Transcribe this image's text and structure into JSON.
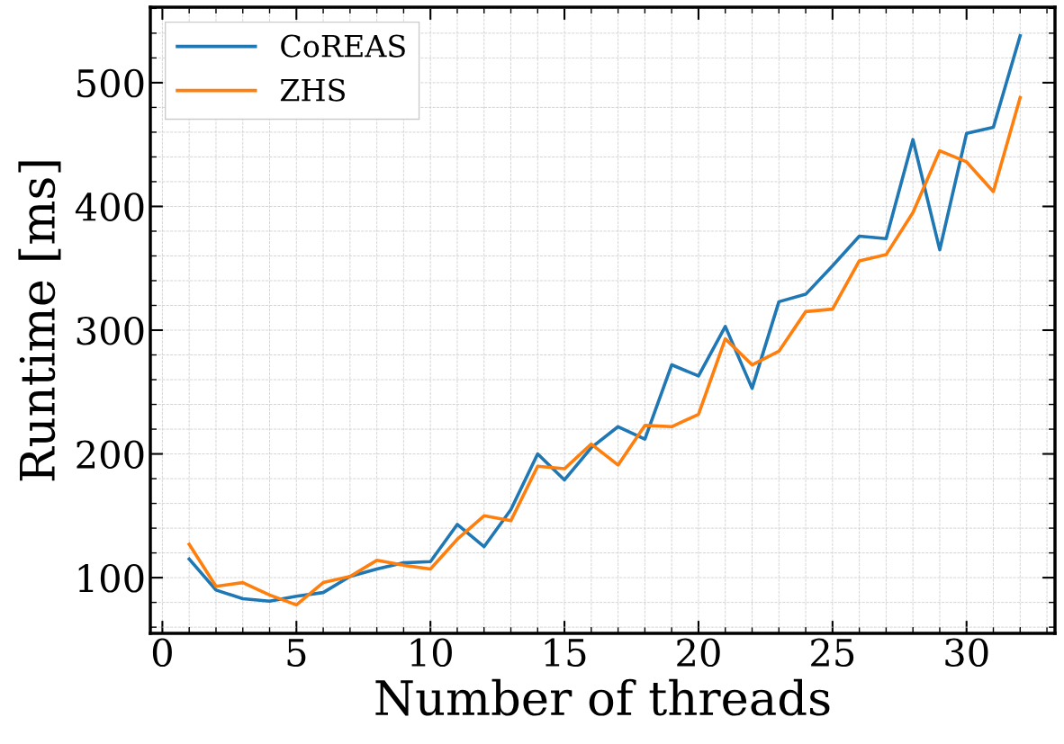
{
  "chart_data": {
    "type": "line",
    "xlabel": "Number of threads",
    "ylabel": "Runtime [ms]",
    "x": [
      1,
      2,
      3,
      4,
      5,
      6,
      7,
      8,
      9,
      10,
      11,
      12,
      13,
      14,
      15,
      16,
      17,
      18,
      19,
      20,
      21,
      22,
      23,
      24,
      25,
      26,
      27,
      28,
      29,
      30,
      31,
      32
    ],
    "series": [
      {
        "name": "CoREAS",
        "color": "#1f77b4",
        "values": [
          115,
          90,
          83,
          81,
          85,
          88,
          101,
          107,
          112,
          113,
          143,
          125,
          155,
          200,
          179,
          205,
          222,
          212,
          272,
          263,
          303,
          253,
          323,
          329,
          352,
          376,
          374,
          454,
          365,
          459,
          464,
          538
        ]
      },
      {
        "name": "ZHS",
        "color": "#ff7f0e",
        "values": [
          127,
          93,
          96,
          86,
          78,
          96,
          101,
          114,
          110,
          107,
          131,
          150,
          146,
          190,
          188,
          208,
          191,
          223,
          222,
          232,
          293,
          272,
          283,
          315,
          317,
          356,
          361,
          395,
          445,
          436,
          412,
          488
        ]
      }
    ],
    "xlim": [
      -0.45,
      33.3
    ],
    "ylim": [
      55,
      561
    ],
    "xticks": [
      0,
      {
        "value": 1,
        "label": null
      },
      {
        "value": 2,
        "label": null
      },
      {
        "value": 3,
        "label": null
      },
      {
        "value": 4,
        "label": null
      },
      5,
      {
        "value": 6,
        "label": null
      },
      {
        "value": 7,
        "label": null
      },
      {
        "value": 8,
        "label": null
      },
      {
        "value": 9,
        "label": null
      },
      10,
      {
        "value": 11,
        "label": null
      },
      {
        "value": 12,
        "label": null
      },
      {
        "value": 13,
        "label": null
      },
      {
        "value": 14,
        "label": null
      },
      15,
      {
        "value": 16,
        "label": null
      },
      {
        "value": 17,
        "label": null
      },
      {
        "value": 18,
        "label": null
      },
      {
        "value": 19,
        "label": null
      },
      20,
      {
        "value": 21,
        "label": null
      },
      {
        "value": 22,
        "label": null
      },
      {
        "value": 23,
        "label": null
      },
      {
        "value": 24,
        "label": null
      },
      25,
      {
        "value": 26,
        "label": null
      },
      {
        "value": 27,
        "label": null
      },
      {
        "value": 28,
        "label": null
      },
      {
        "value": 29,
        "label": null
      },
      30,
      {
        "value": 31,
        "label": null
      },
      {
        "value": 32,
        "label": null
      },
      {
        "value": 33,
        "label": null
      }
    ],
    "yticks": [
      {
        "value": 60,
        "label": null
      },
      {
        "value": 80,
        "label": null
      },
      100,
      {
        "value": 120,
        "label": null
      },
      {
        "value": 140,
        "label": null
      },
      {
        "value": 160,
        "label": null
      },
      {
        "value": 180,
        "label": null
      },
      200,
      {
        "value": 220,
        "label": null
      },
      {
        "value": 240,
        "label": null
      },
      {
        "value": 260,
        "label": null
      },
      {
        "value": 280,
        "label": null
      },
      300,
      {
        "value": 320,
        "label": null
      },
      {
        "value": 340,
        "label": null
      },
      {
        "value": 360,
        "label": null
      },
      {
        "value": 380,
        "label": null
      },
      400,
      {
        "value": 420,
        "label": null
      },
      {
        "value": 440,
        "label": null
      },
      {
        "value": 460,
        "label": null
      },
      {
        "value": 480,
        "label": null
      },
      500,
      {
        "value": 520,
        "label": null
      },
      {
        "value": 540,
        "label": null
      },
      {
        "value": 560,
        "label": null
      }
    ],
    "grid": true,
    "legend": "top left",
    "marker": "none",
    "line_style": "solid"
  }
}
